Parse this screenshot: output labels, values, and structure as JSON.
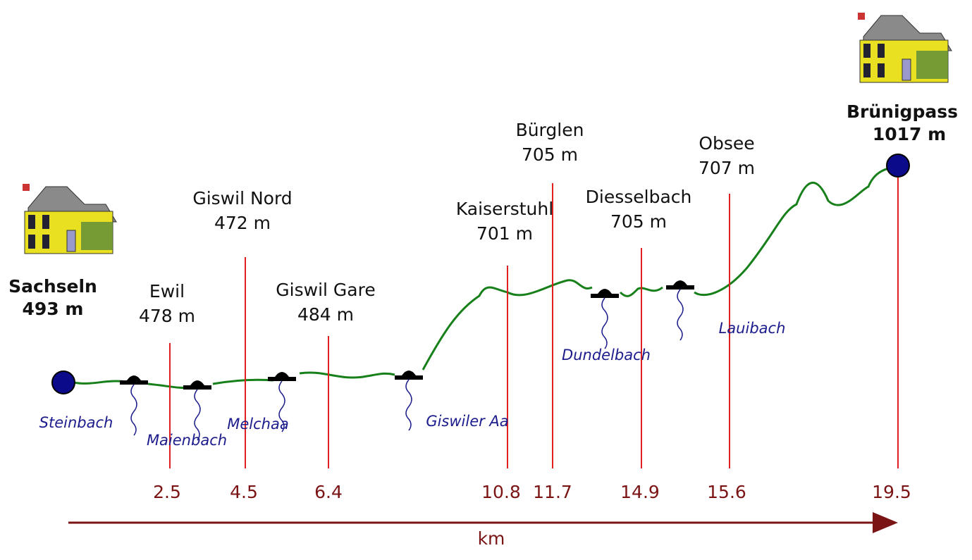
{
  "endpoints": [
    {
      "name": "Sachseln",
      "elevation": "493 m"
    },
    {
      "name": "Brünigpass",
      "elevation": "1017 m"
    }
  ],
  "stations": [
    {
      "name": "Ewil",
      "elevation": "478 m",
      "km": "2.5"
    },
    {
      "name": "Giswil Nord",
      "elevation": "472 m",
      "km": "4.5"
    },
    {
      "name": "Giswil Gare",
      "elevation": "484 m",
      "km": "6.4"
    },
    {
      "name": "Kaiserstuhl",
      "elevation": "701 m",
      "km": "10.8"
    },
    {
      "name": "Bürglen",
      "elevation": "705 m",
      "km": "11.7"
    },
    {
      "name": "Diesselbach",
      "elevation": "705 m",
      "km": "14.9"
    },
    {
      "name": "Obsee",
      "elevation": "707 m",
      "km": "15.6"
    }
  ],
  "end_km": "19.5",
  "streams": [
    "Steinbach",
    "Maienbach",
    "Melchaa",
    "Giswiler Aa",
    "Dundelbach",
    "Lauibach"
  ],
  "axis_label": "km"
}
